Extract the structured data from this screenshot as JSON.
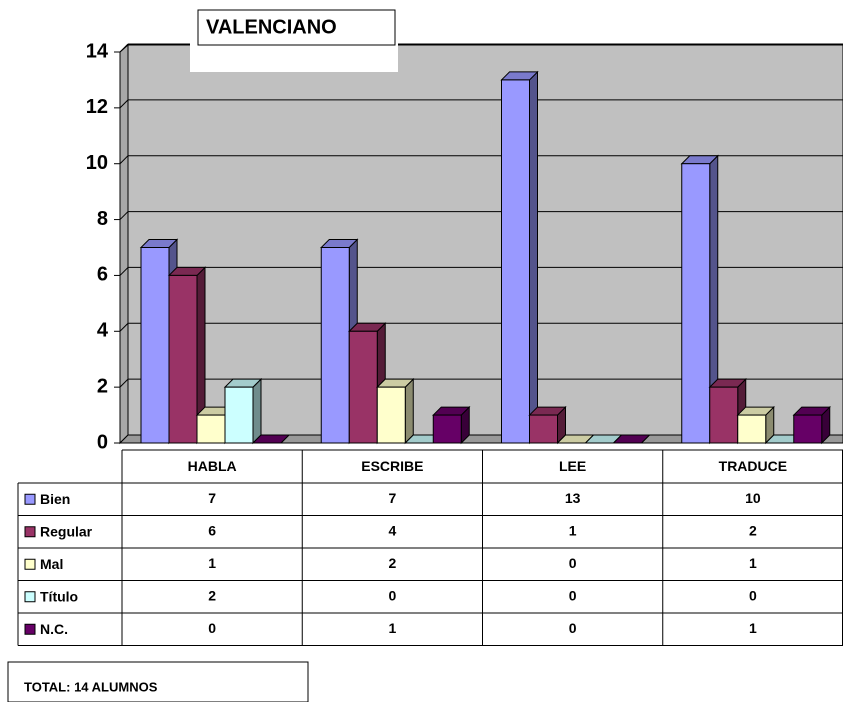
{
  "chart_data": {
    "type": "bar",
    "title": "VALENCIANO",
    "categories": [
      "HABLA",
      "ESCRIBE",
      "LEE",
      "TRADUCE"
    ],
    "series": [
      {
        "name": "Bien",
        "color": "#9999ff",
        "values": [
          7,
          7,
          13,
          10
        ]
      },
      {
        "name": "Regular",
        "color": "#993366",
        "values": [
          6,
          4,
          1,
          2
        ]
      },
      {
        "name": "Mal",
        "color": "#ffffcc",
        "values": [
          1,
          2,
          0,
          1
        ]
      },
      {
        "name": "Título",
        "color": "#ccffff",
        "values": [
          2,
          0,
          0,
          0
        ]
      },
      {
        "name": "N.C.",
        "color": "#660066",
        "values": [
          0,
          1,
          0,
          1
        ]
      }
    ],
    "ylim": [
      0,
      14
    ],
    "yticks": [
      0,
      2,
      4,
      6,
      8,
      10,
      12,
      14
    ],
    "grid": true,
    "annotations": [
      "TOTAL: 14 ALUMNOS"
    ]
  }
}
